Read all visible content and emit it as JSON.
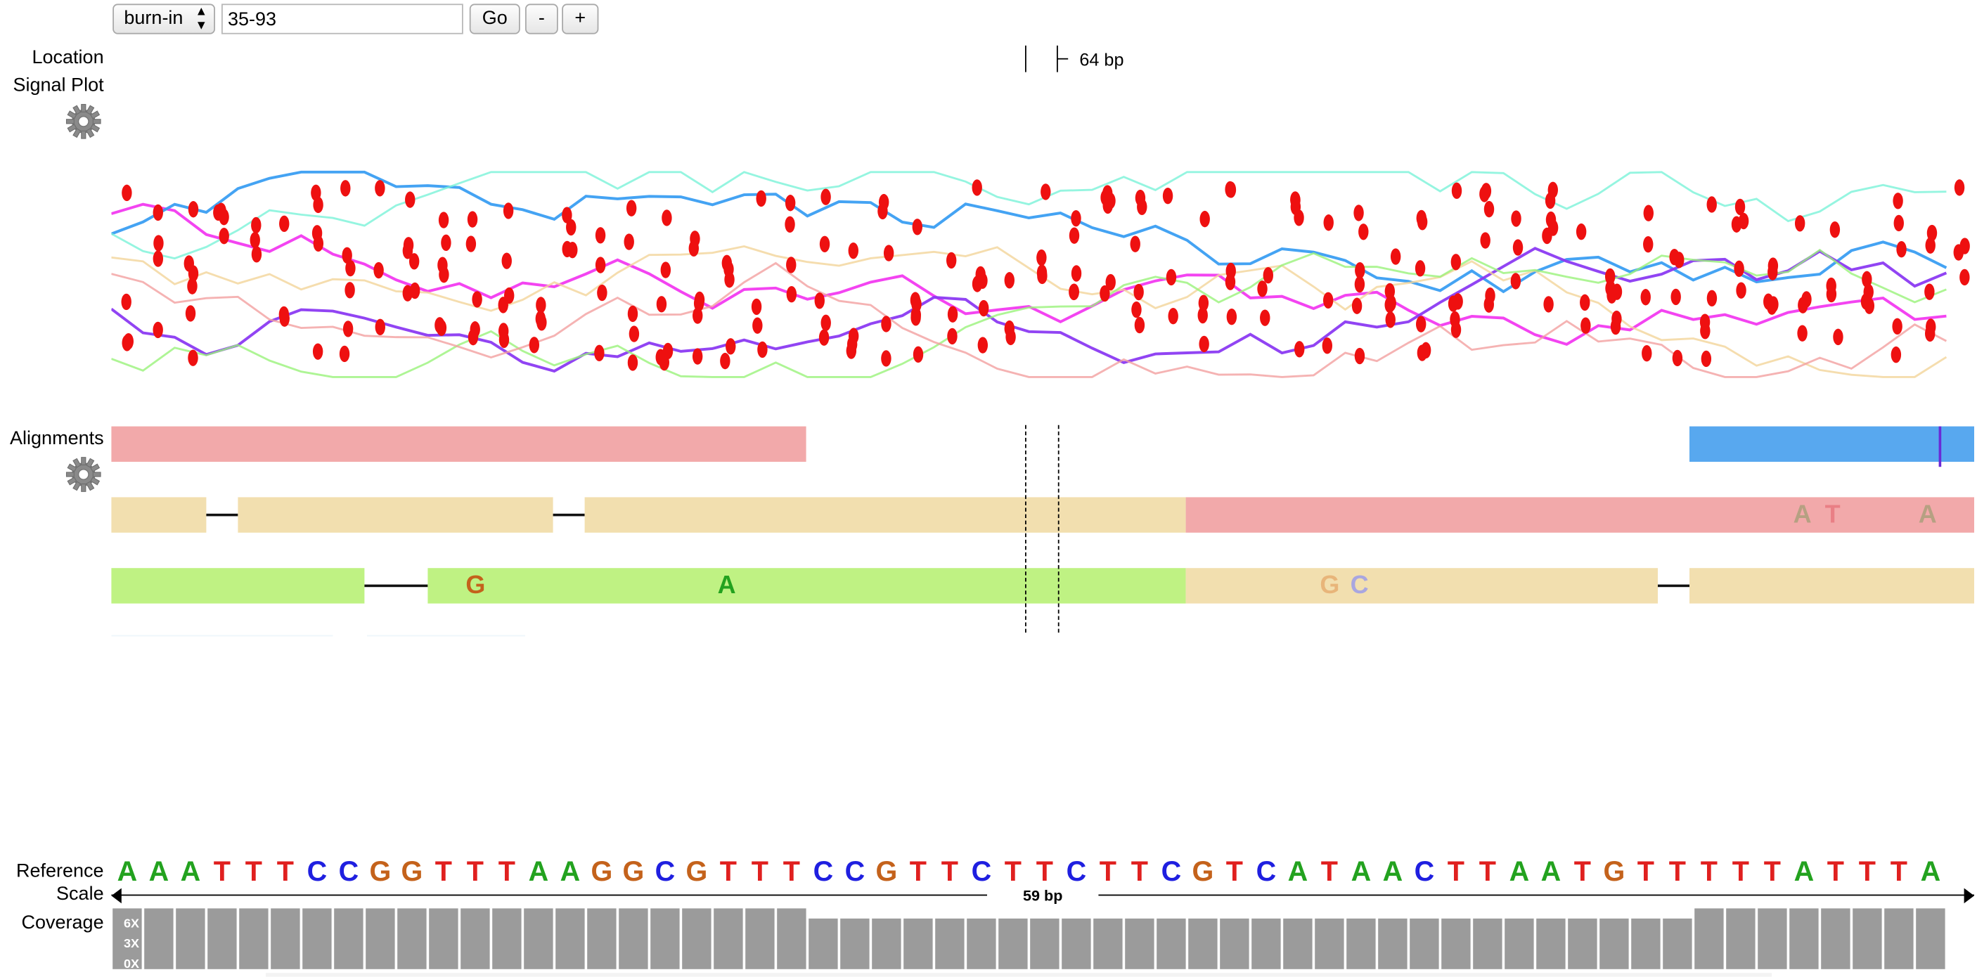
{
  "toolbar": {
    "genome_select": "burn-in",
    "locus_value": "35-93",
    "go_label": "Go",
    "zoom_out_label": "-",
    "zoom_in_label": "+"
  },
  "tracks": {
    "location_label": "Location",
    "signal_label": "Signal Plot",
    "alignments_label": "Alignments",
    "reference_label": "Reference",
    "scale_label": "Scale",
    "coverage_label": "Coverage"
  },
  "location": {
    "marker_text": "64 bp"
  },
  "scale": {
    "text": "59 bp"
  },
  "coverage": {
    "ticks": [
      "6X",
      "3X",
      "0X"
    ]
  },
  "reference": {
    "sequence": [
      "A",
      "A",
      "A",
      "T",
      "T",
      "T",
      "C",
      "C",
      "G",
      "G",
      "T",
      "T",
      "T",
      "A",
      "A",
      "G",
      "G",
      "C",
      "G",
      "T",
      "T",
      "T",
      "C",
      "C",
      "G",
      "T",
      "T",
      "C",
      "T",
      "T",
      "C",
      "T",
      "T",
      "C",
      "G",
      "T",
      "C",
      "A",
      "T",
      "A",
      "A",
      "C",
      "T",
      "T",
      "A",
      "A",
      "T",
      "G",
      "T",
      "T",
      "T",
      "T",
      "T",
      "A",
      "T",
      "T",
      "T",
      "A"
    ],
    "colors": {
      "A": "#23a21f",
      "C": "#1f1fe0",
      "G": "#c4621b",
      "T": "#e0201f"
    }
  },
  "alignments": {
    "row1_mismatches": [
      "A",
      "T",
      "A"
    ],
    "row2_mismatches": [
      "G",
      "A",
      "G",
      "C"
    ]
  },
  "signal": {
    "colors": [
      "#f23af0",
      "#3a9ef2",
      "#8b3af2",
      "#f2d49a",
      "#9af27a",
      "#f2a0a0",
      "#7af2d8"
    ]
  }
}
